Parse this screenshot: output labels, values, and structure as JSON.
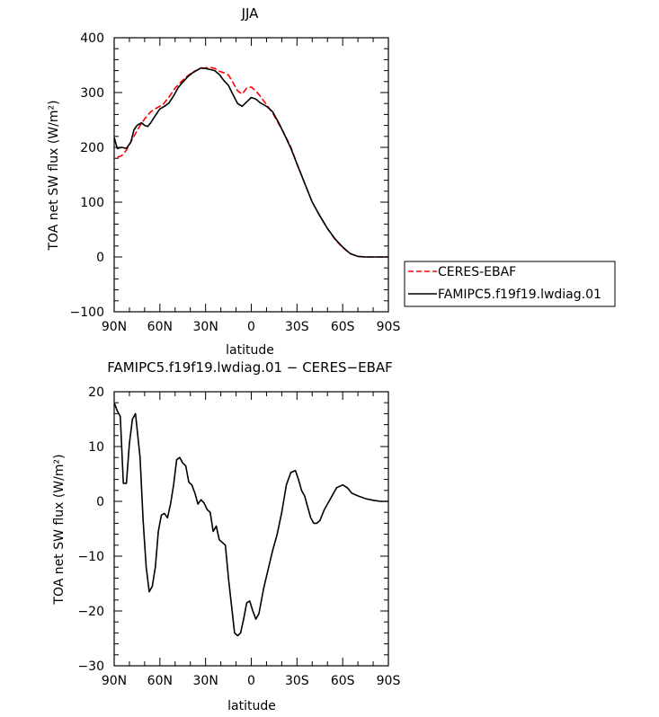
{
  "chart_data": [
    {
      "type": "line",
      "title": "JJA",
      "xlabel": "latitude",
      "ylabel": "TOA net SW flux (W/m²)",
      "xlim": [
        90,
        -90
      ],
      "ylim": [
        -100,
        400
      ],
      "x_tick_labels": [
        "90N",
        "60N",
        "30N",
        "0",
        "30S",
        "60S",
        "90S"
      ],
      "x_tick_values": [
        90,
        60,
        30,
        0,
        -30,
        -60,
        -90
      ],
      "y_ticks": [
        -100,
        0,
        100,
        200,
        300,
        400
      ],
      "legend_position": "right",
      "series": [
        {
          "name": "CERES-EBAF",
          "color": "#ff0000",
          "dash": "dashed",
          "x": [
            88,
            85,
            82,
            78,
            74,
            70,
            66,
            62,
            58,
            54,
            50,
            46,
            42,
            38,
            34,
            30,
            27,
            24,
            21,
            18,
            15,
            12,
            9,
            6,
            3,
            0,
            -3,
            -6,
            -10,
            -14,
            -18,
            -22,
            -26,
            -30,
            -35,
            -40,
            -45,
            -50,
            -55,
            -60,
            -65,
            -70,
            -75,
            -80,
            -85,
            -90
          ],
          "values": [
            182,
            185,
            195,
            215,
            235,
            252,
            265,
            272,
            278,
            292,
            308,
            320,
            330,
            338,
            343,
            345,
            346,
            344,
            339,
            336,
            332,
            318,
            303,
            297,
            308,
            310,
            303,
            293,
            278,
            263,
            243,
            223,
            200,
            170,
            135,
            100,
            75,
            52,
            32,
            17,
            6,
            1,
            0,
            0,
            0,
            0
          ]
        },
        {
          "name": "FAMIPC5.f19f19.lwdiag.01",
          "color": "#000000",
          "dash": "solid",
          "x": [
            90,
            88,
            85,
            82,
            79,
            77,
            75,
            72,
            70,
            68,
            66,
            63,
            60,
            57,
            54,
            51,
            48,
            45,
            42,
            39,
            36,
            33,
            30,
            27,
            24,
            21,
            18,
            15,
            12,
            9,
            6,
            3,
            0,
            -3,
            -6,
            -10,
            -14,
            -18,
            -22,
            -26,
            -30,
            -35,
            -40,
            -45,
            -50,
            -55,
            -60,
            -65,
            -70,
            -75,
            -80,
            -85,
            -90
          ],
          "values": [
            218,
            198,
            200,
            198,
            210,
            232,
            240,
            245,
            240,
            238,
            245,
            258,
            270,
            275,
            281,
            294,
            309,
            319,
            328,
            335,
            340,
            345,
            344,
            342,
            340,
            333,
            322,
            313,
            296,
            280,
            275,
            283,
            291,
            288,
            281,
            275,
            265,
            245,
            222,
            198,
            170,
            135,
            100,
            75,
            52,
            33,
            18,
            6,
            1,
            0,
            0,
            0,
            0
          ]
        }
      ]
    },
    {
      "type": "line",
      "title": "FAMIPC5.f19f19.lwdiag.01 − CERES−EBAF",
      "xlabel": "latitude",
      "ylabel": "TOA net SW flux (W/m²)",
      "xlim": [
        90,
        -90
      ],
      "ylim": [
        -30,
        20
      ],
      "x_tick_labels": [
        "90N",
        "60N",
        "30N",
        "0",
        "30S",
        "60S",
        "90S"
      ],
      "x_tick_values": [
        90,
        60,
        30,
        0,
        -30,
        -60,
        -90
      ],
      "y_ticks": [
        -30,
        -20,
        -10,
        0,
        10,
        20
      ],
      "series": [
        {
          "color": "#000000",
          "dash": "solid",
          "x": [
            90,
            88,
            86,
            84,
            82,
            80,
            78,
            76,
            73,
            71,
            69,
            67,
            65,
            63,
            61,
            59,
            57,
            55,
            53,
            51,
            49,
            47,
            45,
            43,
            41,
            39,
            37,
            35,
            33,
            31,
            29,
            27,
            25,
            23,
            21,
            19,
            17,
            15,
            13,
            11,
            9,
            7,
            5,
            3,
            1,
            -1,
            -3,
            -5,
            -8,
            -11,
            -14,
            -17,
            -20,
            -23,
            -26,
            -29,
            -31,
            -33,
            -35,
            -37,
            -39,
            -41,
            -43,
            -45,
            -48,
            -52,
            -56,
            -60,
            -63,
            -66,
            -70,
            -75,
            -80,
            -85,
            -90
          ],
          "values": [
            18,
            16.5,
            15.5,
            3.3,
            3.3,
            10.5,
            15,
            16,
            8,
            -3.5,
            -12,
            -16.5,
            -15.5,
            -12,
            -5.5,
            -2.5,
            -2.2,
            -3,
            -0.5,
            3,
            7.6,
            8,
            7,
            6.5,
            3.5,
            3,
            1.5,
            -0.5,
            0.3,
            -0.3,
            -1.5,
            -2,
            -5.5,
            -4.5,
            -7,
            -7.5,
            -8,
            -14,
            -19,
            -24,
            -24.5,
            -24,
            -21.5,
            -18.5,
            -18.2,
            -20,
            -21.5,
            -20.5,
            -16,
            -12.5,
            -9,
            -6,
            -2,
            3,
            5.3,
            5.6,
            4,
            2,
            1,
            -1,
            -3,
            -4,
            -4,
            -3.5,
            -1.5,
            0.5,
            2.5,
            3,
            2.5,
            1.5,
            1,
            0.5,
            0.2,
            0,
            0
          ]
        }
      ]
    }
  ]
}
